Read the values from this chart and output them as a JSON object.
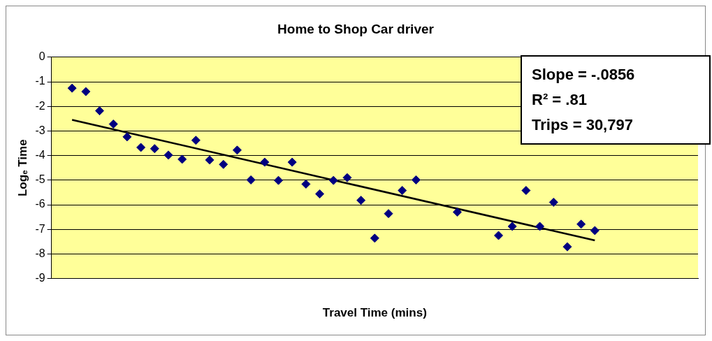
{
  "chart_data": {
    "type": "scatter",
    "title": "Home to Shop Car driver",
    "xlabel": "Travel Time (mins)",
    "ylabel": "Logₑ Time",
    "categories": [
      null,
      null,
      null,
      null,
      null,
      null,
      null,
      null,
      null,
      null,
      null,
      null,
      null,
      null,
      null,
      null,
      null,
      null,
      null,
      null,
      null,
      null,
      null,
      null,
      null,
      null,
      null,
      null,
      null,
      null,
      null,
      null,
      null,
      null,
      null,
      null,
      null,
      null,
      null,
      null,
      null,
      null,
      null,
      null,
      null,
      null,
      null
    ],
    "series": [
      {
        "color": "#000080",
        "marker": "diamond",
        "values": [
          null,
          -1.26,
          -1.4,
          -2.18,
          -2.72,
          -3.24,
          -3.67,
          -3.72,
          -3.98,
          -4.15,
          -3.38,
          -4.18,
          -4.36,
          -3.78,
          -4.99,
          -4.27,
          -5.01,
          -4.27,
          -5.16,
          -5.56,
          -5.01,
          -4.9,
          -5.82,
          -7.36,
          -6.36,
          -5.42,
          -4.99,
          null,
          null,
          -6.3,
          null,
          null,
          -7.25,
          -6.88,
          -5.42,
          -6.88,
          -5.9,
          -7.71,
          -6.79,
          -7.05,
          null,
          null,
          null,
          null,
          null,
          null,
          null
        ]
      },
      {
        "type": "line",
        "color": "#000000",
        "marker": "none",
        "line_style": "solid",
        "values": [
          null,
          -2.55,
          null,
          null,
          null,
          null,
          null,
          null,
          null,
          null,
          null,
          null,
          null,
          null,
          null,
          null,
          null,
          null,
          null,
          null,
          null,
          null,
          null,
          null,
          null,
          null,
          null,
          null,
          null,
          null,
          null,
          null,
          null,
          null,
          null,
          null,
          null,
          null,
          null,
          -7.45,
          null,
          null,
          null,
          null,
          null,
          null,
          null
        ]
      }
    ],
    "ylim": [
      -9,
      0
    ],
    "yticks": [
      -9,
      -8,
      -7,
      -6,
      -5,
      -4,
      -3,
      -2,
      -1,
      0
    ],
    "grid": "y",
    "legend": false,
    "tick_labels": "y",
    "annotations": [
      "Slope = -.0856",
      "R² = .81",
      "Trips = 30,797"
    ]
  }
}
